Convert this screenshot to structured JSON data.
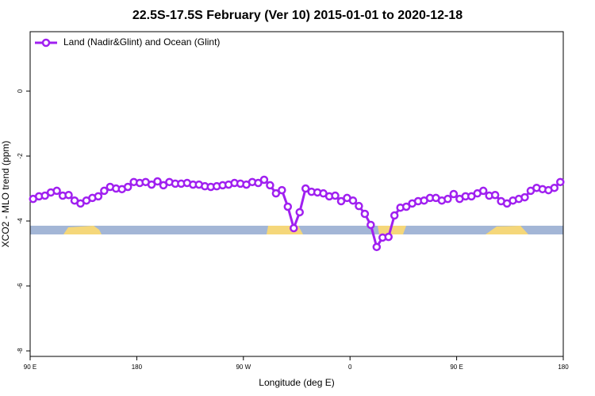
{
  "chart_data": {
    "type": "line",
    "title": "22.5S-17.5S February (Ver 10)   2015-01-01 to 2020-12-18",
    "xlabel": "Longitude (deg E)",
    "ylabel": "XCO2 - MLO trend (ppm)",
    "xlim": [
      90,
      540
    ],
    "ylim": [
      -8.17,
      1.83
    ],
    "xticks": [
      {
        "value": 90,
        "label": "90 E"
      },
      180,
      {
        "value": 270,
        "label": "90 W"
      },
      {
        "value": 360,
        "label": "0"
      },
      {
        "value": 450,
        "label": "90 E"
      },
      {
        "value": 540,
        "label": "180"
      }
    ],
    "yticks": [
      0,
      -2,
      -4,
      -6,
      -8
    ],
    "legend": "top-left",
    "x": [
      92.5,
      97.5,
      102.5,
      107.5,
      112.5,
      117.5,
      122.5,
      127.5,
      132.5,
      137.5,
      142.5,
      147.5,
      152.5,
      157.5,
      162.5,
      167.5,
      172.5,
      177.5,
      182.5,
      187.5,
      192.5,
      197.5,
      202.5,
      207.5,
      212.5,
      217.5,
      222.5,
      227.5,
      232.5,
      237.5,
      242.5,
      247.5,
      252.5,
      257.5,
      262.5,
      267.5,
      272.5,
      277.5,
      282.5,
      287.5,
      292.5,
      297.5,
      302.5,
      307.5,
      312.5,
      317.5,
      322.5,
      327.5,
      332.5,
      337.5,
      342.5,
      347.5,
      352.5,
      357.5,
      362.5,
      367.5,
      372.5,
      377.5,
      382.5,
      387.5,
      392.5,
      397.5,
      402.5,
      407.5,
      412.5,
      417.5,
      422.5,
      427.5,
      432.5,
      437.5,
      442.5,
      447.5,
      452.5,
      457.5,
      462.5,
      467.5,
      472.5,
      477.5,
      482.5,
      487.5,
      492.5,
      497.5,
      502.5,
      507.5,
      512.5,
      517.5,
      522.5,
      527.5,
      532.5,
      537.5
    ],
    "series": [
      {
        "name": "Land (Nadir&Glint) and Ocean (Glint)",
        "color": "#a020f0",
        "values": [
          -3.32,
          -3.24,
          -3.22,
          -3.12,
          -3.07,
          -3.22,
          -3.2,
          -3.37,
          -3.46,
          -3.37,
          -3.29,
          -3.24,
          -3.07,
          -2.95,
          -3.0,
          -3.02,
          -2.95,
          -2.8,
          -2.83,
          -2.8,
          -2.88,
          -2.78,
          -2.9,
          -2.8,
          -2.85,
          -2.85,
          -2.83,
          -2.88,
          -2.88,
          -2.93,
          -2.95,
          -2.93,
          -2.9,
          -2.88,
          -2.83,
          -2.85,
          -2.88,
          -2.8,
          -2.83,
          -2.73,
          -2.9,
          -3.15,
          -3.05,
          -3.56,
          -4.22,
          -3.73,
          -3.0,
          -3.1,
          -3.12,
          -3.15,
          -3.24,
          -3.22,
          -3.39,
          -3.29,
          -3.37,
          -3.54,
          -3.78,
          -4.12,
          -4.8,
          -4.51,
          -4.49,
          -3.83,
          -3.59,
          -3.56,
          -3.46,
          -3.39,
          -3.37,
          -3.29,
          -3.29,
          -3.37,
          -3.32,
          -3.17,
          -3.32,
          -3.24,
          -3.24,
          -3.15,
          -3.07,
          -3.22,
          -3.2,
          -3.39,
          -3.46,
          -3.37,
          -3.32,
          -3.27,
          -3.07,
          -2.98,
          -3.02,
          -3.05,
          -2.98,
          -2.8
        ]
      }
    ]
  }
}
